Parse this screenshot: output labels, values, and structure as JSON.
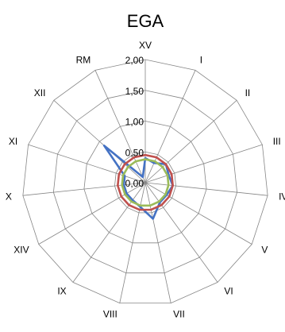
{
  "chart_data": {
    "type": "radar",
    "title": "EGA",
    "categories": [
      "XV",
      "I",
      "II",
      "III",
      "IV",
      "V",
      "VI",
      "VII",
      "VIII",
      "IX",
      "XIV",
      "X",
      "XI",
      "XII",
      "RM"
    ],
    "rlim": [
      0,
      2.0
    ],
    "ticks": [
      "0,00",
      "0,50",
      "1,00",
      "1,50",
      "2,00"
    ],
    "tick_values": [
      0,
      0.5,
      1.0,
      1.5,
      2.0
    ],
    "gridlines": true,
    "legend": "none",
    "series": [
      {
        "color": "#4472C4",
        "values": [
          0.4,
          0.35,
          0.45,
          0.4,
          0.45,
          0.4,
          0.4,
          0.6,
          0.4,
          0.35,
          0.35,
          0.35,
          0.35,
          0.9,
          0.1
        ]
      },
      {
        "color": "#C0504D",
        "values": [
          0.45,
          0.45,
          0.45,
          0.45,
          0.45,
          0.45,
          0.45,
          0.45,
          0.45,
          0.45,
          0.45,
          0.45,
          0.45,
          0.45,
          0.45
        ]
      },
      {
        "color": "#9BBB59",
        "values": [
          0.38,
          0.38,
          0.38,
          0.38,
          0.38,
          0.38,
          0.38,
          0.38,
          0.38,
          0.38,
          0.38,
          0.38,
          0.38,
          0.38,
          0.38
        ]
      }
    ]
  }
}
